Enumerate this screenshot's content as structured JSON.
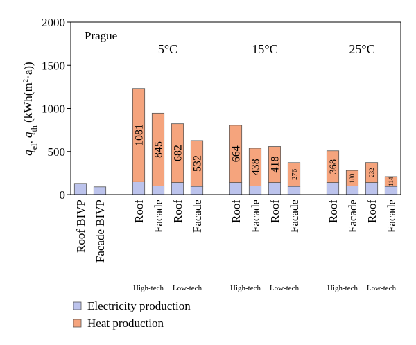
{
  "chart_data": {
    "type": "stacked_bar",
    "ylabel": [
      {
        "text": "q",
        "italic": true
      },
      {
        "text": "el",
        "sub": true
      },
      {
        "text": ", "
      },
      {
        "text": "q",
        "italic": true
      },
      {
        "text": "th",
        "sub": true
      },
      {
        "text": " (kWh(m"
      },
      {
        "text": "2",
        "sup": true
      },
      {
        "text": "·a))"
      }
    ],
    "categories": [
      "Roof BIVP",
      "Facade BIVP",
      null,
      "Roof",
      "Facade",
      "Roof",
      "Facade",
      null,
      "Roof",
      "Facade",
      "Roof",
      "Facade",
      null,
      "Roof",
      "Facade",
      "Roof",
      "Facade"
    ],
    "series": [
      {
        "name": "Electricity production",
        "color": "#bcc3ec",
        "values": [
          130,
          90,
          null,
          150,
          100,
          140,
          95,
          null,
          140,
          100,
          140,
          95,
          null,
          140,
          100,
          140,
          95
        ]
      },
      {
        "name": "Heat production",
        "color": "#f5a47d",
        "values": [
          null,
          null,
          null,
          1081,
          845,
          682,
          532,
          null,
          664,
          438,
          418,
          276,
          null,
          368,
          180,
          232,
          114
        ],
        "show_values": true
      }
    ],
    "annotations": [
      "Prague",
      "5°C",
      "15°C",
      "25°C",
      "High-tech",
      "Low-tech",
      "High-tech",
      "Low-tech",
      "High-tech",
      "Low-tech"
    ],
    "ylim": [
      0,
      2000
    ],
    "yticks": [
      0,
      500,
      1000,
      1500,
      2000
    ],
    "grid": false,
    "legend": "bottom-left"
  }
}
